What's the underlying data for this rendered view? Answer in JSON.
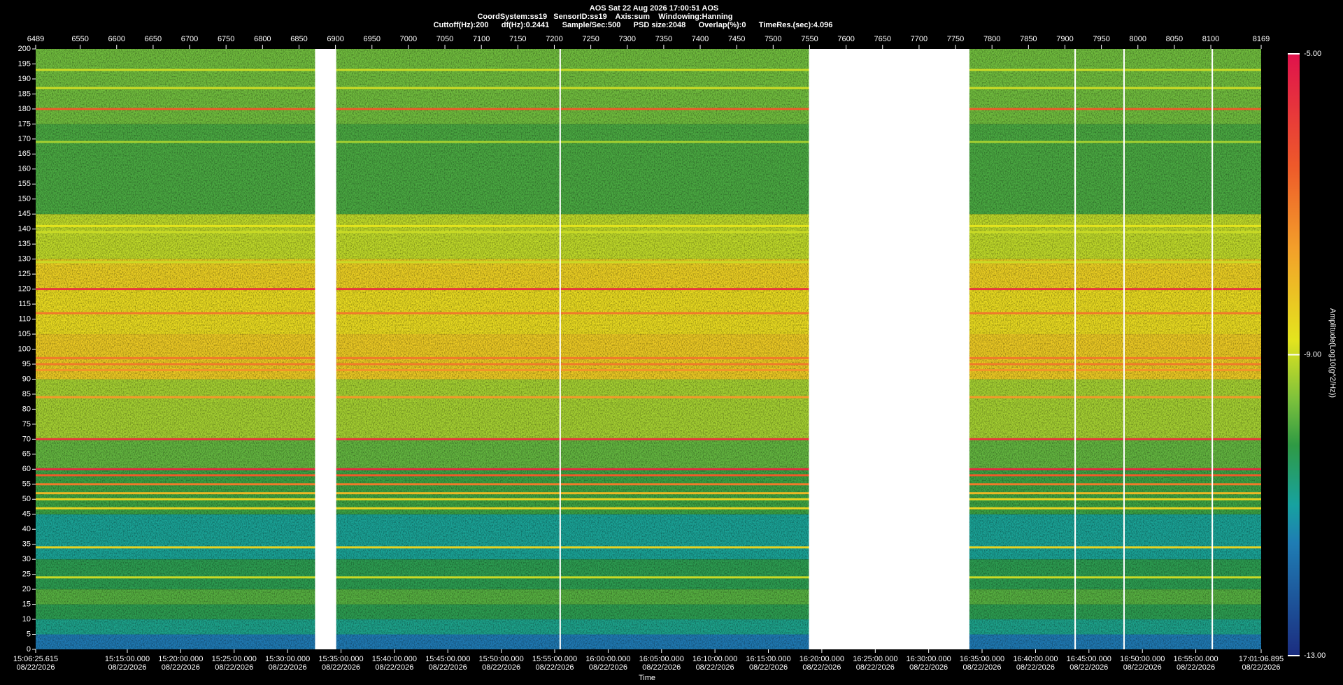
{
  "chart_data": {
    "type": "spectrogram",
    "title": "AOS  Sat 22 Aug 2026 17:00:51  AOS",
    "subtitle": [
      "CoordSystem:ss19   SensorID:ss19    Axis:sum    Windowing:Hanning",
      "Cuttoff(Hz):200      df(Hz):0.2441      Sample/Sec:500      PSD size:2048      Overlap(%):0      TimeRes.(sec):4.096"
    ],
    "xlabel": "Time",
    "colorbar_label": "Amplitude(Log10(g^2/Hz))",
    "xlim": [
      6489,
      8169
    ],
    "xticks": [
      6489,
      6550,
      6600,
      6650,
      6700,
      6750,
      6800,
      6850,
      6900,
      6950,
      7000,
      7050,
      7100,
      7150,
      7200,
      7250,
      7300,
      7350,
      7400,
      7450,
      7500,
      7550,
      7600,
      7650,
      7700,
      7750,
      7800,
      7850,
      7900,
      7950,
      8000,
      8050,
      8100,
      8169
    ],
    "x2ticks": [
      {
        "value": 6489,
        "label": "15:06:25.615"
      },
      {
        "value": 6614.6,
        "label": "15:15:00.000"
      },
      {
        "value": 6687.8,
        "label": "15:20:00.000"
      },
      {
        "value": 6761.1,
        "label": "15:25:00.000"
      },
      {
        "value": 6834.3,
        "label": "15:30:00.000"
      },
      {
        "value": 6907.6,
        "label": "15:35:00.000"
      },
      {
        "value": 6980.8,
        "label": "15:40:00.000"
      },
      {
        "value": 7054.0,
        "label": "15:45:00.000"
      },
      {
        "value": 7127.3,
        "label": "15:50:00.000"
      },
      {
        "value": 7200.5,
        "label": "15:55:00.000"
      },
      {
        "value": 7273.8,
        "label": "16:00:00.000"
      },
      {
        "value": 7347.0,
        "label": "16:05:00.000"
      },
      {
        "value": 7420.2,
        "label": "16:10:00.000"
      },
      {
        "value": 7493.5,
        "label": "16:15:00.000"
      },
      {
        "value": 7566.7,
        "label": "16:20:00.000"
      },
      {
        "value": 7640.0,
        "label": "16:25:00.000"
      },
      {
        "value": 7713.2,
        "label": "16:30:00.000"
      },
      {
        "value": 7786.4,
        "label": "16:35:00.000"
      },
      {
        "value": 7859.7,
        "label": "16:40:00.000"
      },
      {
        "value": 7932.9,
        "label": "16:45:00.000"
      },
      {
        "value": 8006.2,
        "label": "16:50:00.000"
      },
      {
        "value": 8079.4,
        "label": "16:55:00.000"
      },
      {
        "value": 8169,
        "label": "17:01:06.895"
      }
    ],
    "x2tick_dates": [
      "08/22/2026",
      "08/22/2026",
      "08/22/2026",
      "08/22/2026",
      "08/22/2026",
      "08/22/2026",
      "08/22/2026",
      "08/22/2026",
      "08/22/2026",
      "08/22/2026",
      "08/22/2026",
      "08/22/2026",
      "08/22/2026",
      "08/22/2026",
      "08/22/2026",
      "08/22/2026",
      "08/22/2026",
      "08/22/2026",
      "08/22/2026",
      "08/22/2026",
      "08/22/2026",
      "08/22/2026",
      "08/22/2026"
    ],
    "ylim": [
      0,
      200
    ],
    "yticks": [
      0,
      5,
      10,
      15,
      20,
      25,
      30,
      35,
      40,
      45,
      50,
      55,
      60,
      65,
      70,
      75,
      80,
      85,
      90,
      95,
      100,
      105,
      110,
      115,
      120,
      125,
      130,
      135,
      140,
      145,
      150,
      155,
      160,
      165,
      170,
      175,
      180,
      185,
      190,
      195,
      200
    ],
    "clim": [
      -13,
      -5
    ],
    "cticks": [
      {
        "value": -5,
        "label": "-5.00"
      },
      {
        "value": -9,
        "label": "-9.00"
      },
      {
        "value": -13,
        "label": "-13.00"
      }
    ],
    "bands": [
      {
        "from": 0,
        "to": 5,
        "amplitude": -11.6
      },
      {
        "from": 5,
        "to": 10,
        "amplitude": -10.8
      },
      {
        "from": 10,
        "to": 15,
        "amplitude": -10.3
      },
      {
        "from": 15,
        "to": 20,
        "amplitude": -9.9
      },
      {
        "from": 20,
        "to": 30,
        "amplitude": -10.3
      },
      {
        "from": 30,
        "to": 45,
        "amplitude": -10.9
      },
      {
        "from": 45,
        "to": 60,
        "amplitude": -10.1
      },
      {
        "from": 60,
        "to": 70,
        "amplitude": -9.8
      },
      {
        "from": 70,
        "to": 90,
        "amplitude": -9.3
      },
      {
        "from": 90,
        "to": 105,
        "amplitude": -8.3
      },
      {
        "from": 105,
        "to": 120,
        "amplitude": -8.6
      },
      {
        "from": 120,
        "to": 130,
        "amplitude": -8.4
      },
      {
        "from": 130,
        "to": 145,
        "amplitude": -9.1
      },
      {
        "from": 145,
        "to": 175,
        "amplitude": -10.0
      },
      {
        "from": 175,
        "to": 200,
        "amplitude": -9.7
      }
    ],
    "lines": [
      {
        "freq": 193,
        "amplitude": -9.0
      },
      {
        "freq": 187,
        "amplitude": -9.0
      },
      {
        "freq": 180,
        "amplitude": -6.5
      },
      {
        "freq": 169,
        "amplitude": -9.3
      },
      {
        "freq": 141,
        "amplitude": -8.8
      },
      {
        "freq": 139,
        "amplitude": -9.0
      },
      {
        "freq": 129,
        "amplitude": -9.0
      },
      {
        "freq": 120,
        "amplitude": -5.8
      },
      {
        "freq": 112,
        "amplitude": -7.0
      },
      {
        "freq": 97,
        "amplitude": -7.0
      },
      {
        "freq": 95,
        "amplitude": -7.0
      },
      {
        "freq": 93,
        "amplitude": -7.4
      },
      {
        "freq": 84,
        "amplitude": -7.5
      },
      {
        "freq": 70,
        "amplitude": -5.8
      },
      {
        "freq": 60,
        "amplitude": -5.5
      },
      {
        "freq": 58,
        "amplitude": -6.5
      },
      {
        "freq": 55,
        "amplitude": -7.0
      },
      {
        "freq": 52,
        "amplitude": -8.0
      },
      {
        "freq": 50,
        "amplitude": -8.5
      },
      {
        "freq": 47,
        "amplitude": -8.5
      },
      {
        "freq": 34,
        "amplitude": -8.5
      },
      {
        "freq": 24,
        "amplitude": -9.0
      }
    ],
    "gaps": [
      [
        6872,
        6901
      ],
      [
        7207,
        7209
      ],
      [
        7549,
        7769
      ],
      [
        7913,
        7915
      ],
      [
        7980,
        7982
      ],
      [
        8101,
        8103
      ]
    ]
  }
}
